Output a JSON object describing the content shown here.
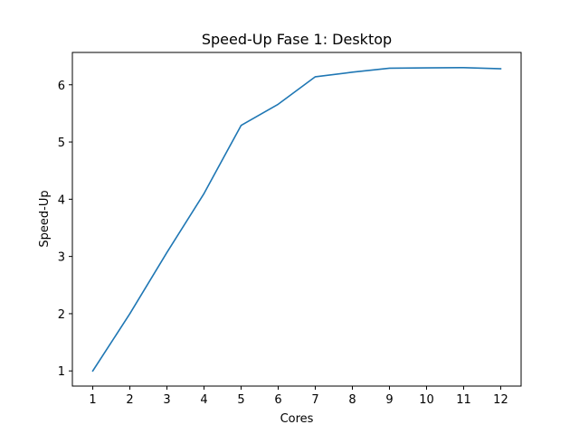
{
  "chart_data": {
    "type": "line",
    "title": "Speed-Up Fase 1: Desktop",
    "xlabel": "Cores",
    "ylabel": "Speed-Up",
    "x": [
      1,
      2,
      3,
      4,
      5,
      6,
      7,
      8,
      9,
      10,
      11,
      12
    ],
    "series": [
      {
        "values": [
          1.0,
          2.0,
          3.07,
          4.1,
          5.29,
          5.66,
          6.14,
          6.22,
          6.29,
          6.295,
          6.3,
          6.28
        ],
        "color": "#1f77b4"
      }
    ],
    "xticks": [
      1,
      2,
      3,
      4,
      5,
      6,
      7,
      8,
      9,
      10,
      11,
      12
    ],
    "yticks": [
      1,
      2,
      3,
      4,
      5,
      6
    ],
    "xlim": [
      0.45,
      12.55
    ],
    "ylim": [
      0.735,
      6.565
    ],
    "grid": false
  }
}
